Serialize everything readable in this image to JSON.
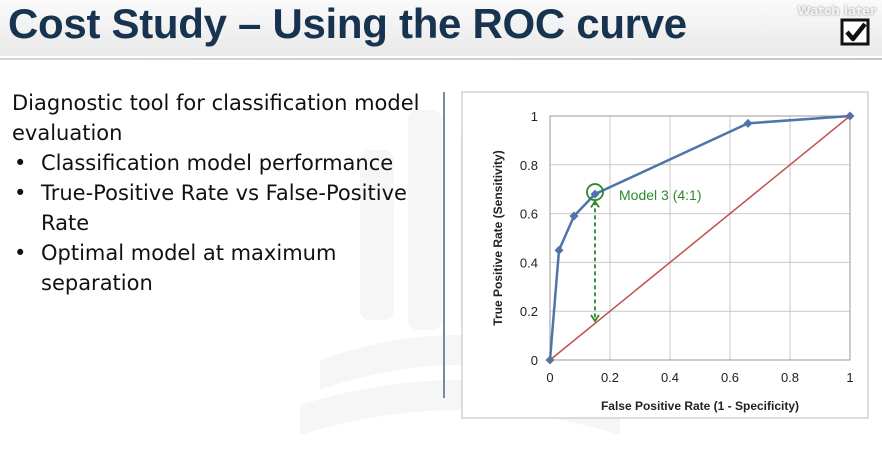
{
  "slide": {
    "title": "Cost Study – Using the ROC curve",
    "watch_later_label": "Watch later",
    "watch_later_icon": "checkmark-icon",
    "lead_text": "Diagnostic tool for classification model evaluation",
    "bullets": [
      "Classification model performance",
      "True-Positive Rate vs False-Positive Rate",
      "Optimal model at maximum separation"
    ]
  },
  "chart_data": {
    "type": "line",
    "title": "",
    "xlabel": "False Positive Rate  (1 - Specificity)",
    "ylabel": "True Positive Rate  (Sensitivity)",
    "xlim": [
      0,
      1
    ],
    "ylim": [
      0,
      1
    ],
    "xticks": [
      "0",
      "0.2",
      "0.4",
      "0.6",
      "0.8",
      "1"
    ],
    "yticks": [
      "0",
      "0.2",
      "0.4",
      "0.6",
      "0.8",
      "1"
    ],
    "grid": true,
    "series": [
      {
        "color": "#4f74aa",
        "x": [
          0,
          0.03,
          0.08,
          0.15,
          0.66,
          1
        ],
        "y": [
          0,
          0.45,
          0.59,
          0.68,
          0.97,
          1
        ]
      },
      {
        "color": "#c0504d",
        "x": [
          0,
          1
        ],
        "y": [
          0,
          1
        ]
      }
    ],
    "annotations": [
      {
        "text": "Model 3 (4:1)",
        "x": 0.15,
        "y": 0.68,
        "color": "#2a8a2a"
      }
    ],
    "separation": {
      "x": 0.15,
      "y_from": 0.16,
      "y_to": 0.65,
      "color": "#2a8a2a"
    }
  }
}
